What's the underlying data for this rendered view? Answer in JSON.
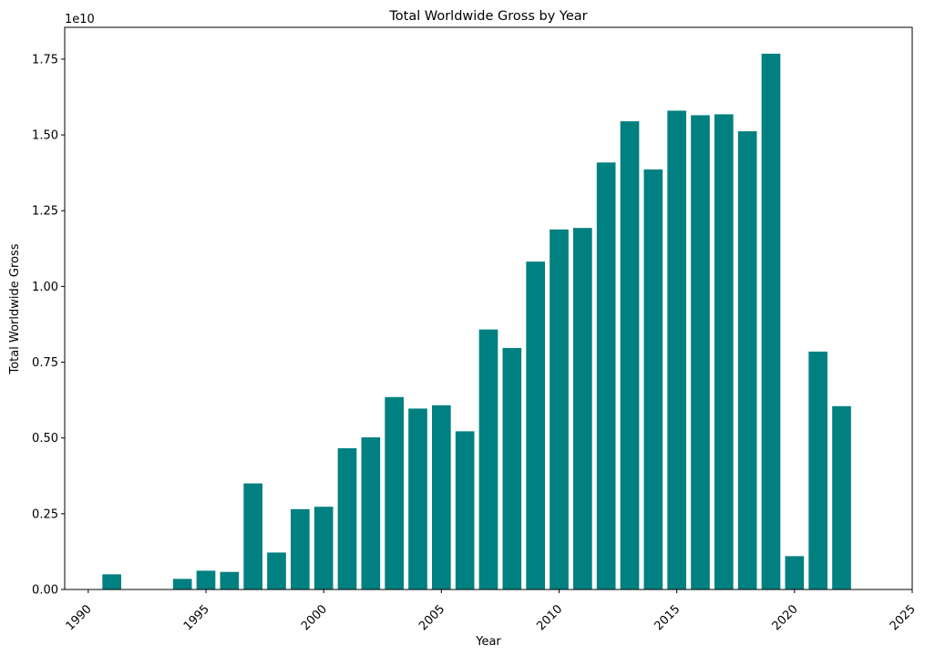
{
  "chart_data": {
    "type": "bar",
    "title": "Total Worldwide Gross by Year",
    "xlabel": "Year",
    "ylabel": "Total Worldwide Gross",
    "offset_label": "1e10",
    "color": "#008080",
    "grid": false,
    "xlim": [
      1989,
      2025
    ],
    "ylim": [
      0,
      1.855
    ],
    "x_ticks": [
      1990,
      1995,
      2000,
      2005,
      2010,
      2015,
      2020,
      2025
    ],
    "y_ticks": [
      "0.00",
      "0.25",
      "0.50",
      "0.75",
      "1.00",
      "1.25",
      "1.50",
      "1.75"
    ],
    "x": [
      1991,
      1994,
      1995,
      1996,
      1997,
      1998,
      1999,
      2000,
      2001,
      2002,
      2003,
      2004,
      2005,
      2006,
      2007,
      2008,
      2009,
      2010,
      2011,
      2012,
      2013,
      2014,
      2015,
      2016,
      2017,
      2018,
      2019,
      2020,
      2021,
      2022
    ],
    "values": [
      0.05,
      0.035,
      0.062,
      0.058,
      0.35,
      0.122,
      0.265,
      0.273,
      0.466,
      0.502,
      0.635,
      0.597,
      0.608,
      0.522,
      0.858,
      0.797,
      1.082,
      1.188,
      1.193,
      1.409,
      1.545,
      1.386,
      1.58,
      1.565,
      1.568,
      1.512,
      1.768,
      0.11,
      0.785,
      0.605
    ]
  }
}
